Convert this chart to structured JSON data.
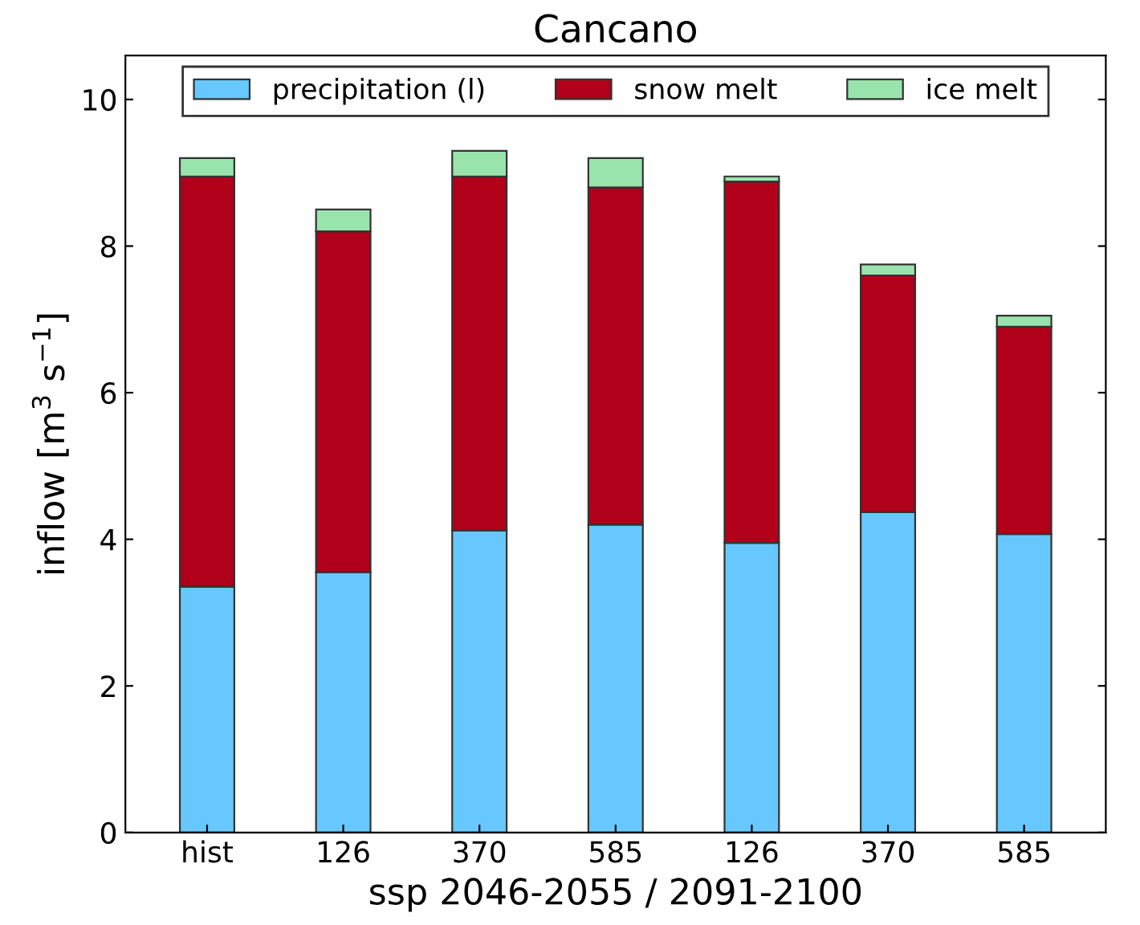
{
  "chart_data": {
    "type": "bar",
    "title": "Cancano",
    "xlabel": "ssp 2046-2055 / 2091-2100",
    "ylabel": "inflow [m$^{3}$ s$^{−1}$]",
    "categories": [
      "hist",
      "126",
      "370",
      "585",
      "126",
      "370",
      "585"
    ],
    "stacked": true,
    "series": [
      {
        "name": "precipitation (l)",
        "color": "#66c8ff",
        "values": [
          3.35,
          3.55,
          4.12,
          4.2,
          3.95,
          4.37,
          4.07
        ]
      },
      {
        "name": "snow melt",
        "color": "#b0001a",
        "values": [
          5.6,
          4.65,
          4.83,
          4.6,
          4.93,
          3.23,
          2.83
        ]
      },
      {
        "name": "ice melt",
        "color": "#99e4ad",
        "values": [
          0.25,
          0.3,
          0.35,
          0.4,
          0.07,
          0.15,
          0.15
        ]
      }
    ],
    "ylim": [
      0,
      10.6
    ],
    "yticks": [
      0,
      2,
      4,
      6,
      8,
      10
    ],
    "grid": false,
    "legend": "top"
  }
}
